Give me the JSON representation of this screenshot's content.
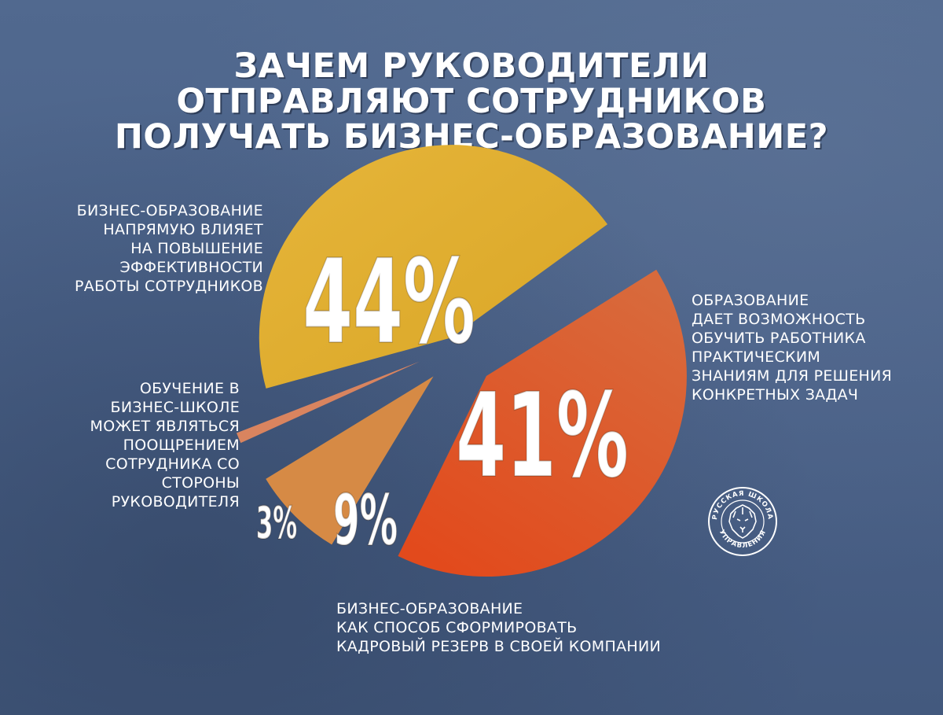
{
  "title_lines": [
    "ЗАЧЕМ РУКОВОДИТЕЛИ",
    "ОТПРАВЛЯЮТ СОТРУДНИКОВ",
    "ПОЛУЧАТЬ БИЗНЕС-ОБРАЗОВАНИЕ?"
  ],
  "labels": {
    "efficiency": [
      "Бизнес-образование",
      "напрямую влияет",
      "на повышение",
      "эффективности",
      "работы сотрудников"
    ],
    "practice": [
      "Образование",
      "дает возможность",
      "обучить работника",
      "практическим",
      "знаниям для решения",
      "конкретных задач"
    ],
    "reward": [
      "Обучение в",
      "бизнес-школе",
      "может являться",
      "поощрением",
      "сотрудника со",
      "стороны",
      "руководителя"
    ],
    "reserve": [
      "Бизнес-образование",
      "как способ сформировать",
      "кадровый резерв в своей компании"
    ]
  },
  "logo": {
    "text_top": "РУССКАЯ ШКОЛА",
    "text_bottom": "УПРАВЛЕНИЯ",
    "icon": "lion-icon"
  },
  "chart_data": {
    "type": "pie",
    "title": "ЗАЧЕМ РУКОВОДИТЕЛИ ОТПРАВЛЯЮТ СОТРУДНИКОВ ПОЛУЧАТЬ БИЗНЕС-ОБРАЗОВАНИЕ?",
    "slices": [
      {
        "label": "Бизнес-образование напрямую влияет на повышение эффективности работы сотрудников",
        "value": 44,
        "display": "44%",
        "color": "#e0b02e"
      },
      {
        "label": "Образование дает возможность обучить работника практическим знаниям для решения конкретных задач",
        "value": 41,
        "display": "41%",
        "color": "#e05a2a"
      },
      {
        "label": "Бизнес-образование как способ сформировать кадровый резерв в своей компании",
        "value": 9,
        "display": "9%",
        "color": "#d68a45"
      },
      {
        "label": "Обучение в бизнес-школе может являться поощрением сотрудника со стороны руководителя",
        "value": 3,
        "display": "3%",
        "color": "#d9845f"
      }
    ]
  }
}
